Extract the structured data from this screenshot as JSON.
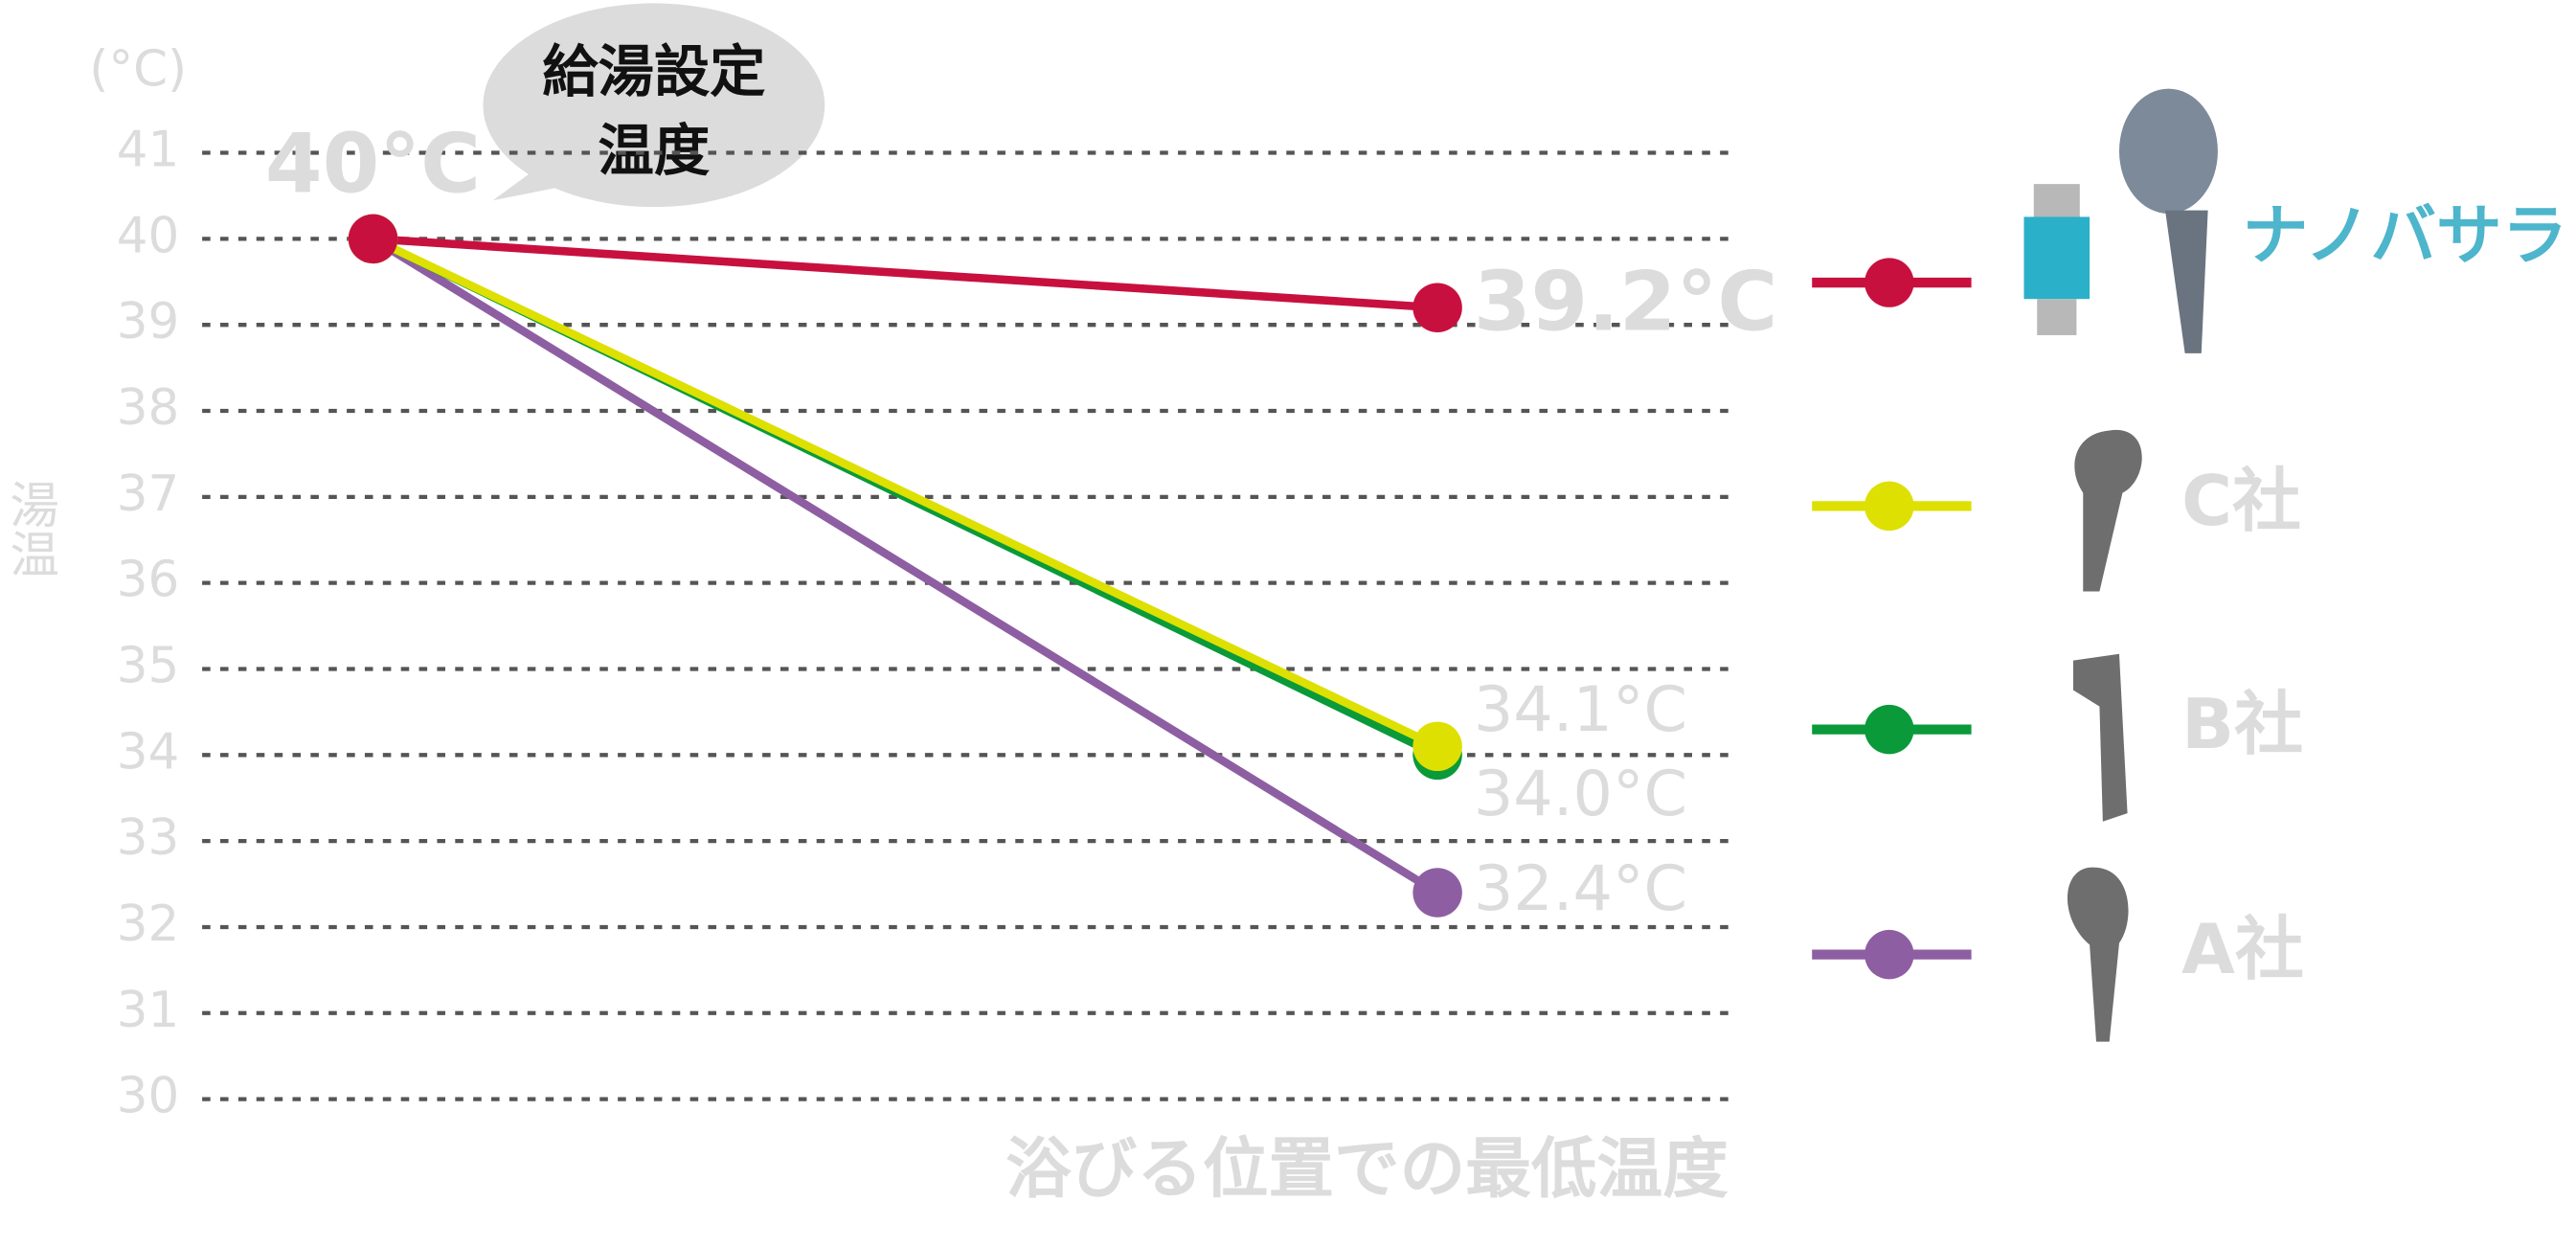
{
  "chart_data": {
    "type": "line",
    "y_unit": "(°C)",
    "ylabel": "湯温",
    "xlabel": "浴びる位置での最低温度",
    "annotation": [
      "給湯設定",
      "温度"
    ],
    "categories": [
      null,
      null
    ],
    "ylim": [
      30,
      41
    ],
    "yticks": [
      30,
      31,
      32,
      33,
      34,
      35,
      36,
      37,
      38,
      39,
      40,
      41
    ],
    "grid": true,
    "series": [
      {
        "name": "ナノバサラ",
        "color": "#c8103f",
        "values": [
          40,
          39.2
        ],
        "value_labels": [
          "40°C",
          "39.2°C"
        ]
      },
      {
        "name": "C社",
        "color": "#dde000",
        "values": [
          40,
          34.1
        ],
        "value_labels": [
          null,
          "34.1°C"
        ]
      },
      {
        "name": "B社",
        "color": "#0a9a3a",
        "values": [
          40,
          34.0
        ],
        "value_labels": [
          null,
          "34.0°C"
        ]
      },
      {
        "name": "A社",
        "color": "#8e5ea2",
        "values": [
          40,
          32.4
        ],
        "value_labels": [
          null,
          "32.4°C"
        ]
      }
    ]
  }
}
